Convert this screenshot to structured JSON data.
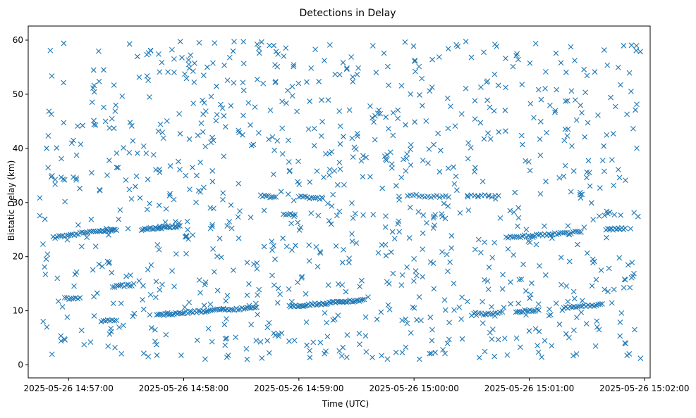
{
  "chart_data": {
    "type": "scatter",
    "title": "Detections in Delay",
    "xlabel": "Time (UTC)",
    "ylabel": "Bistatic Delay (km)",
    "x_axis_kind": "datetime",
    "xlim": [
      "2025-05-26 14:56:39",
      "2025-05-26 15:02:03"
    ],
    "ylim": [
      -2.4,
      62.6
    ],
    "x_ticks": [
      "2025-05-26 14:57:00",
      "2025-05-26 14:58:00",
      "2025-05-26 14:59:00",
      "2025-05-26 15:00:00",
      "2025-05-26 15:01:00",
      "2025-05-26 15:02:00"
    ],
    "y_ticks": [
      0,
      10,
      20,
      30,
      40,
      50,
      60
    ],
    "marker": "x",
    "color": "#1f77b4",
    "grid": false,
    "legend": "none",
    "tracks": [
      {
        "x_start": "2025-05-26 14:56:52",
        "x_end": "2025-05-26 14:57:15",
        "y_start": 23.5,
        "y_end": 24.8,
        "n": 24
      },
      {
        "x_start": "2025-05-26 14:57:16",
        "x_end": "2025-05-26 14:57:25",
        "y_start": 24.7,
        "y_end": 25.0,
        "n": 12
      },
      {
        "x_start": "2025-05-26 14:57:38",
        "x_end": "2025-05-26 14:57:58",
        "y_start": 25.0,
        "y_end": 25.6,
        "n": 26
      },
      {
        "x_start": "2025-05-26 14:57:23",
        "x_end": "2025-05-26 14:57:34",
        "y_start": 14.5,
        "y_end": 14.8,
        "n": 12
      },
      {
        "x_start": "2025-05-26 14:56:58",
        "x_end": "2025-05-26 14:57:06",
        "y_start": 12.3,
        "y_end": 12.3,
        "n": 8
      },
      {
        "x_start": "2025-05-26 14:57:17",
        "x_end": "2025-05-26 14:57:25",
        "y_start": 8.2,
        "y_end": 8.2,
        "n": 8
      },
      {
        "x_start": "2025-05-26 14:57:46",
        "x_end": "2025-05-26 14:58:12",
        "y_start": 9.2,
        "y_end": 10.0,
        "n": 30
      },
      {
        "x_start": "2025-05-26 14:58:12",
        "x_end": "2025-05-26 14:58:38",
        "y_start": 10.0,
        "y_end": 10.6,
        "n": 28
      },
      {
        "x_start": "2025-05-26 14:58:55",
        "x_end": "2025-05-26 14:59:34",
        "y_start": 10.8,
        "y_end": 12.0,
        "n": 48
      },
      {
        "x_start": "2025-05-26 14:58:52",
        "x_end": "2025-05-26 14:58:58",
        "y_start": 27.8,
        "y_end": 27.8,
        "n": 6
      },
      {
        "x_start": "2025-05-26 14:59:00",
        "x_end": "2025-05-26 14:59:12",
        "y_start": 31.0,
        "y_end": 30.8,
        "n": 12
      },
      {
        "x_start": "2025-05-26 14:58:41",
        "x_end": "2025-05-26 14:58:48",
        "y_start": 31.2,
        "y_end": 31.0,
        "n": 8
      },
      {
        "x_start": "2025-05-26 14:59:58",
        "x_end": "2025-05-26 15:00:18",
        "y_start": 31.3,
        "y_end": 31.0,
        "n": 14
      },
      {
        "x_start": "2025-05-26 15:00:28",
        "x_end": "2025-05-26 15:00:44",
        "y_start": 31.2,
        "y_end": 31.2,
        "n": 10
      },
      {
        "x_start": "2025-05-26 15:00:30",
        "x_end": "2025-05-26 15:00:46",
        "y_start": 9.3,
        "y_end": 9.6,
        "n": 14
      },
      {
        "x_start": "2025-05-26 15:00:53",
        "x_end": "2025-05-26 15:01:05",
        "y_start": 9.8,
        "y_end": 10.2,
        "n": 14
      },
      {
        "x_start": "2025-05-26 15:01:18",
        "x_end": "2025-05-26 15:01:38",
        "y_start": 10.6,
        "y_end": 11.1,
        "n": 20
      },
      {
        "x_start": "2025-05-26 15:00:48",
        "x_end": "2025-05-26 15:01:27",
        "y_start": 23.5,
        "y_end": 24.6,
        "n": 38
      },
      {
        "x_start": "2025-05-26 15:01:40",
        "x_end": "2025-05-26 15:01:50",
        "y_start": 25.0,
        "y_end": 25.2,
        "n": 12
      }
    ],
    "background_note_count": 980
  }
}
